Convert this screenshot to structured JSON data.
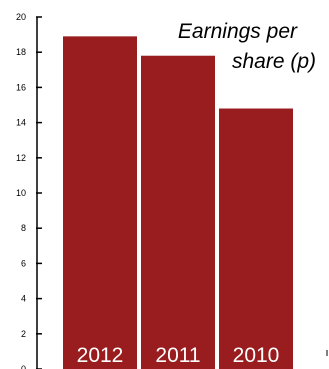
{
  "chart_data": {
    "type": "bar",
    "title": "Earnings per share (p)",
    "title_lines": [
      "Earnings per",
      "share (p)"
    ],
    "categories": [
      "2012",
      "2011",
      "2010"
    ],
    "values": [
      18.9,
      17.8,
      14.8
    ],
    "ylim": [
      0,
      20
    ],
    "yticks": [
      0,
      2,
      4,
      6,
      8,
      10,
      12,
      14,
      16,
      18,
      20
    ],
    "ytick_labels": [
      "0",
      "2",
      "4",
      "6",
      "8",
      "10",
      "12",
      "14",
      "16",
      "18",
      "20"
    ],
    "xlabel": "",
    "ylabel": "",
    "grid": false,
    "legend": "none",
    "colors": {
      "bar": "#991c1f",
      "axis": "#000000",
      "bar_label": "#ffffff"
    }
  }
}
